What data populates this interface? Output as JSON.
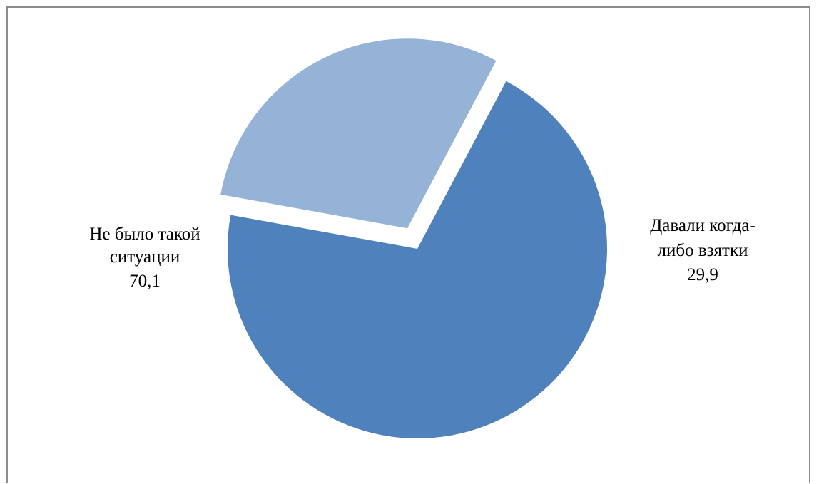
{
  "chart_data": {
    "type": "pie",
    "title": "",
    "slices": [
      {
        "label_lines": [
          "Не было такой",
          "ситуации"
        ],
        "value": 70.1,
        "value_label": "70,1",
        "color": "#4f81bd"
      },
      {
        "label_lines": [
          "Давали когда-",
          "либо взятки"
        ],
        "value": 29.9,
        "value_label": "29,9",
        "color": "#95b3d7"
      }
    ],
    "exploded_slice": 1,
    "legend": "none"
  }
}
